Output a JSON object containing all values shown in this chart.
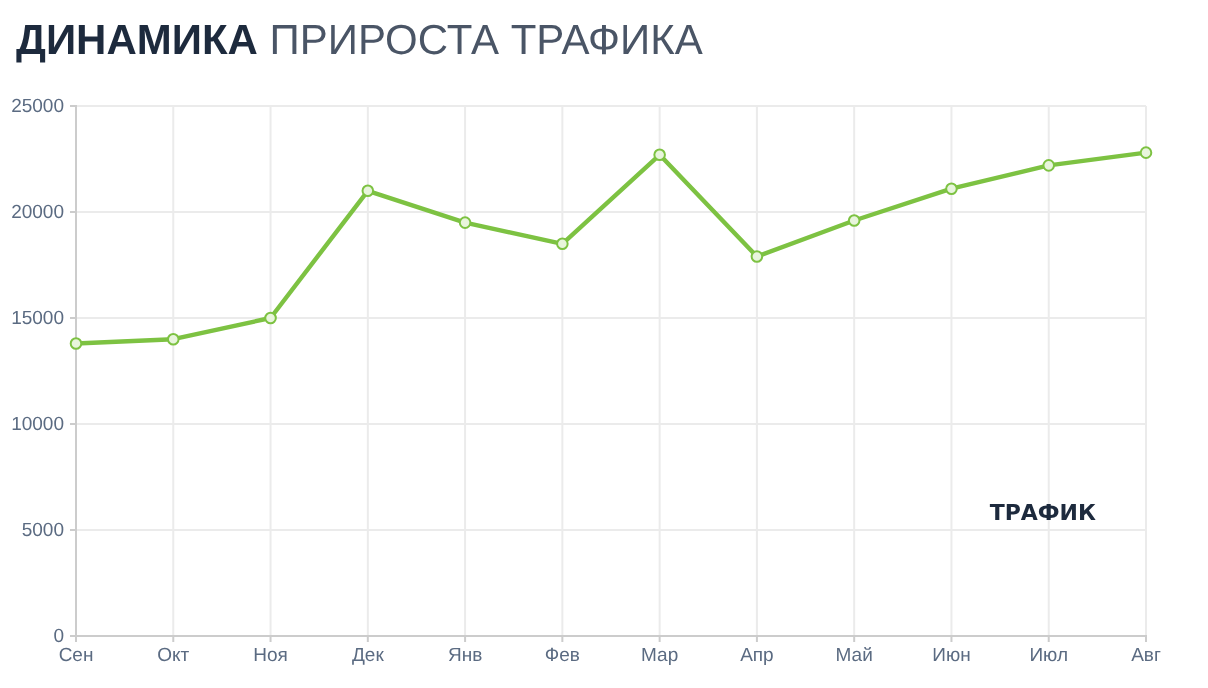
{
  "chart_data": {
    "type": "line",
    "title": "ДИНАМИКА ПРИРОСТА ТРАФИКА",
    "categories": [
      "Сен",
      "Окт",
      "Ноя",
      "Дек",
      "Янв",
      "Фев",
      "Мар",
      "Апр",
      "Май",
      "Июн",
      "Июл",
      "Авг"
    ],
    "series": [
      {
        "name": "ТРАФИК",
        "color": "#7dc242",
        "values": [
          13800,
          14000,
          15000,
          21000,
          19500,
          18500,
          22700,
          17900,
          19600,
          21100,
          22200,
          22800
        ]
      }
    ],
    "ylim": [
      0,
      25000
    ],
    "yticks": [
      0,
      5000,
      10000,
      15000,
      20000,
      25000
    ],
    "grid": true,
    "legend": "bottom right",
    "marker": "circle",
    "line_style": "solid"
  }
}
